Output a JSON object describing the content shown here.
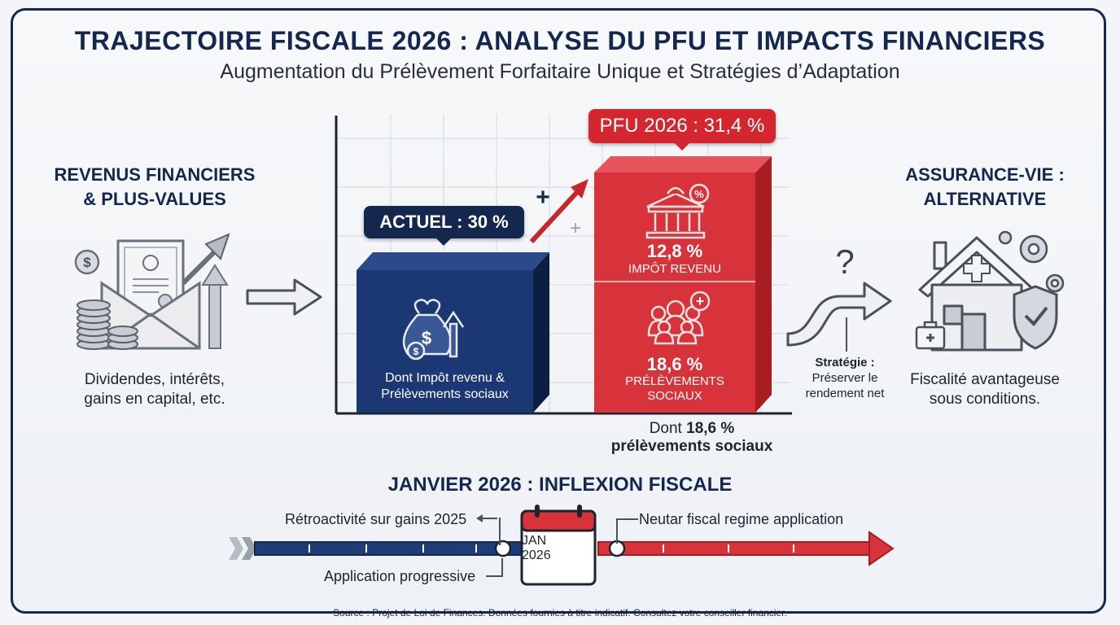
{
  "header": {
    "title": "TRAJECTOIRE FISCALE 2026 : ANALYSE DU PFU ET IMPACTS FINANCIERS",
    "subtitle": "Augmentation du Prélèvement Forfaitaire Unique et Stratégies d’Adaptation"
  },
  "left": {
    "heading_1": "REVENUS FINANCIERS",
    "heading_2": "& PLUS-VALUES",
    "desc_1": "Dividendes, intérêts,",
    "desc_2": "gains en capital, etc."
  },
  "current": {
    "badge": "ACTUEL : 30 %",
    "caption_1": "Dont Impôt revenu &",
    "caption_2": "Prélèvements sociaux"
  },
  "pfu2026": {
    "badge": "PFU 2026 : 31,4 %",
    "tax_pct": "12,8 %",
    "tax_label": "IMPÔT REVENU",
    "social_pct": "18,6 %",
    "social_label_1": "PRÉLÈVEMENTS",
    "social_label_2": "SOCIAUX",
    "note_1": "Dont",
    "note_bold": "18,6 %",
    "note_2": "prélèvements sociaux"
  },
  "strategy": {
    "title": "Stratégie :",
    "line_1": "Préserver le",
    "line_2": "rendement net"
  },
  "right": {
    "heading_1": "ASSURANCE-VIE :",
    "heading_2": "ALTERNATIVE",
    "desc_1": "Fiscalité avantageuse",
    "desc_2": "sous conditions."
  },
  "timeline": {
    "heading": "JANVIER 2026 : INFLEXION FISCALE",
    "retro": "Rétroactivité sur gains 2025",
    "progressive": "Application progressive",
    "neutral": "Neutar fiscal regime application",
    "cal_month": "JAN",
    "cal_year": "2026"
  },
  "footer": {
    "source": "Source : Projet de Loi de Finances. Données fournies à titre indicatif. Consultez votre conseiller financier."
  },
  "colors": {
    "navy": "#14284f",
    "red": "#d3262f",
    "background": "#f3f5f8"
  }
}
